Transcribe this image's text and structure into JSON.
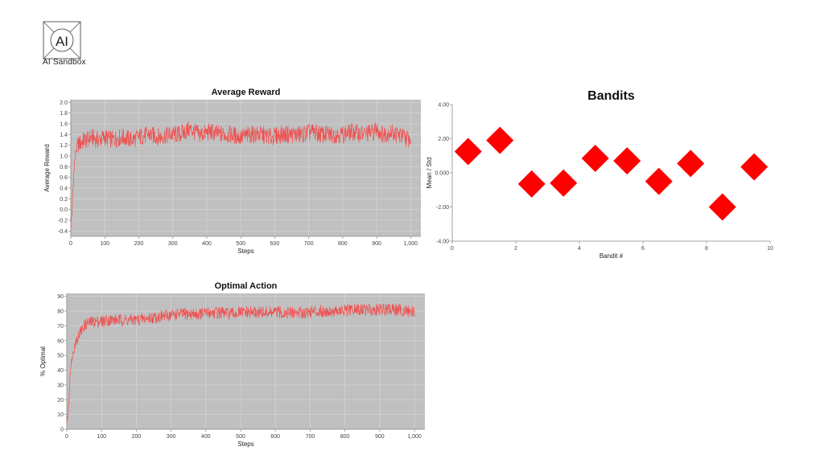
{
  "logo": {
    "mark": "AI",
    "caption": "AI Sandbox"
  },
  "colors": {
    "series": "#f05050",
    "plot_bg": "#c0c0c0",
    "grid": "#d8d8d8",
    "marker": "#ff0000"
  },
  "chart_data": [
    {
      "id": "average-reward",
      "type": "line",
      "title": "Average Reward",
      "xlabel": "Steps",
      "ylabel": "Average Reward",
      "xlim": [
        0,
        1030
      ],
      "ylim": [
        -0.5,
        2.05
      ],
      "xticks": [
        0,
        100,
        200,
        300,
        400,
        500,
        600,
        700,
        800,
        900,
        1000
      ],
      "xtick_labels": [
        "0",
        "100",
        "200",
        "300",
        "400",
        "500",
        "600",
        "700",
        "800",
        "900",
        "1,000"
      ],
      "yticks": [
        -0.4,
        -0.2,
        0.0,
        0.2,
        0.4,
        0.6,
        0.8,
        1.0,
        1.2,
        1.4,
        1.6,
        1.8,
        2.0
      ],
      "ytick_labels": [
        "-0.4",
        "-0.2",
        "0.0",
        "0.2",
        "0.4",
        "0.6",
        "0.8",
        "1.0",
        "1.2",
        "1.4",
        "1.6",
        "1.8",
        "2.0"
      ],
      "grid": true,
      "x": [
        0,
        3,
        6,
        10,
        15,
        20,
        30,
        40,
        50,
        60,
        80,
        100,
        120,
        150,
        180,
        200,
        230,
        260,
        290,
        320,
        350,
        380,
        410,
        440,
        470,
        500,
        530,
        560,
        590,
        620,
        650,
        680,
        710,
        740,
        770,
        800,
        830,
        860,
        890,
        900,
        920,
        940,
        960,
        980,
        1000
      ],
      "y": [
        -0.3,
        -0.1,
        0.3,
        0.8,
        1.1,
        1.2,
        1.25,
        1.3,
        1.3,
        1.35,
        1.3,
        1.35,
        1.3,
        1.35,
        1.3,
        1.35,
        1.4,
        1.35,
        1.4,
        1.4,
        1.5,
        1.4,
        1.45,
        1.4,
        1.4,
        1.35,
        1.4,
        1.4,
        1.35,
        1.4,
        1.4,
        1.4,
        1.45,
        1.4,
        1.4,
        1.4,
        1.45,
        1.4,
        1.45,
        1.5,
        1.4,
        1.45,
        1.4,
        1.35,
        1.3
      ]
    },
    {
      "id": "optimal-action",
      "type": "line",
      "title": "Optimal Action",
      "xlabel": "Steps",
      "ylabel": "% Optimal",
      "xlim": [
        0,
        1030
      ],
      "ylim": [
        0,
        92
      ],
      "xticks": [
        0,
        100,
        200,
        300,
        400,
        500,
        600,
        700,
        800,
        900,
        1000
      ],
      "xtick_labels": [
        "0",
        "100",
        "200",
        "300",
        "400",
        "500",
        "600",
        "700",
        "800",
        "900",
        "1,000"
      ],
      "yticks": [
        0,
        10,
        20,
        30,
        40,
        50,
        60,
        70,
        80,
        90
      ],
      "ytick_labels": [
        "0",
        "10",
        "20",
        "30",
        "40",
        "50",
        "60",
        "70",
        "80",
        "90"
      ],
      "grid": true,
      "x": [
        0,
        3,
        6,
        10,
        15,
        20,
        30,
        40,
        50,
        60,
        80,
        100,
        120,
        150,
        180,
        200,
        230,
        260,
        290,
        320,
        350,
        380,
        410,
        440,
        470,
        500,
        530,
        560,
        590,
        620,
        650,
        680,
        710,
        740,
        770,
        800,
        830,
        860,
        890,
        920,
        950,
        980,
        1000
      ],
      "y": [
        5,
        10,
        20,
        40,
        48,
        55,
        62,
        66,
        70,
        72,
        73,
        73,
        74,
        74,
        74,
        74,
        75,
        76,
        77,
        78,
        78,
        78,
        79,
        79,
        78,
        79,
        79,
        79,
        79,
        79,
        79,
        79,
        80,
        80,
        80,
        80,
        81,
        81,
        81,
        81,
        81,
        80,
        80
      ]
    },
    {
      "id": "bandits",
      "type": "scatter",
      "title": "Bandits",
      "xlabel": "Bandit #",
      "ylabel": "Mean / Std",
      "xlim": [
        0,
        10
      ],
      "ylim": [
        -4,
        4
      ],
      "xticks": [
        0,
        2,
        4,
        6,
        8,
        10
      ],
      "xtick_labels": [
        "0",
        "2",
        "4",
        "6",
        "8",
        "10"
      ],
      "yticks": [
        -4,
        -2,
        0,
        2,
        4
      ],
      "ytick_labels": [
        "-4.00",
        "-2.00",
        "0.000",
        "2.00",
        "4.00"
      ],
      "grid": false,
      "marker": "diamond",
      "x": [
        0.5,
        1.5,
        2.5,
        3.5,
        4.5,
        5.5,
        6.5,
        7.5,
        8.5,
        9.5
      ],
      "y": [
        1.25,
        1.9,
        -0.65,
        -0.6,
        0.85,
        0.7,
        -0.5,
        0.55,
        -2.0,
        0.35
      ]
    }
  ]
}
